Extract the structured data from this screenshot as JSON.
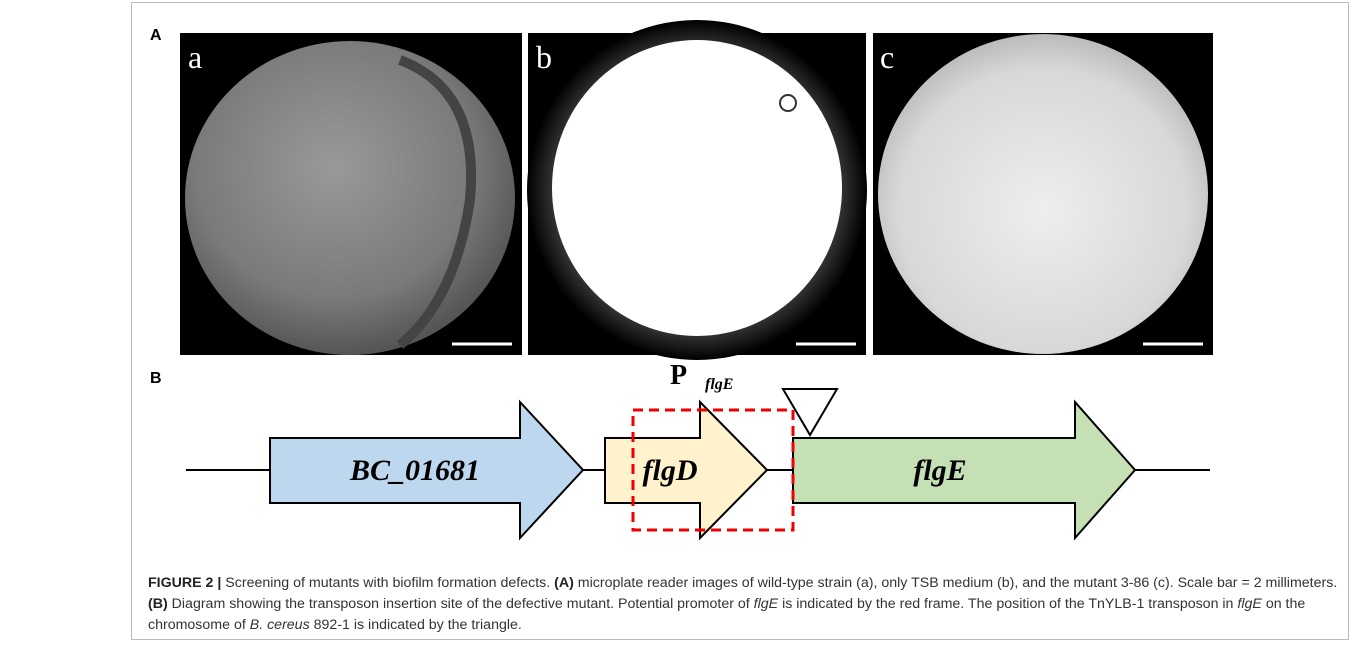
{
  "panel_a": {
    "label": "A",
    "images": [
      {
        "label": "a"
      },
      {
        "label": "b"
      },
      {
        "label": "c"
      }
    ]
  },
  "panel_b": {
    "label": "B",
    "promoter": {
      "letter": "P",
      "subscript": "flgE"
    },
    "genes": [
      {
        "name": "BC_01681"
      },
      {
        "name": "flgD"
      },
      {
        "name": "flgE"
      }
    ]
  },
  "caption": [
    "FIGURE 2 |",
    "Screening of mutants with biofilm formation defects.",
    "(A)",
    "microplate reader images of wild-type strain (a), only TSB medium (b), and the mutant 3-86 (c). Scale bar = 2 millimeters.",
    "(B)",
    "Diagram showing the transposon insertion site of the defective mutant. Potential promoter of",
    "flgE",
    "is indicated by the red frame. The position of the TnYLB-1 transposon in",
    "flgE",
    "on the chromosome of",
    "B. cereus",
    "892-1 is indicated by the triangle."
  ]
}
